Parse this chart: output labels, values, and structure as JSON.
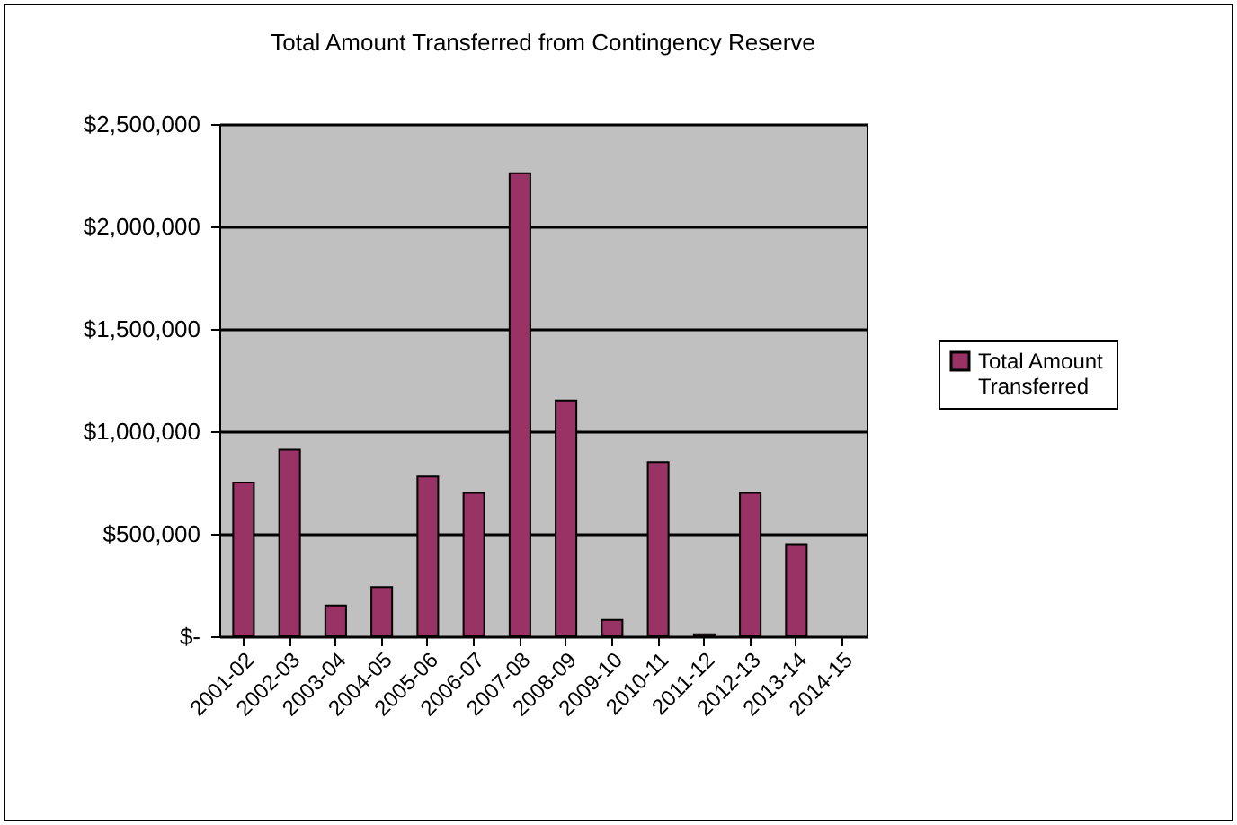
{
  "chart_data": {
    "type": "bar",
    "title": "Total Amount Transferred from Contingency Reserve",
    "categories": [
      "2001-02",
      "2002-03",
      "2003-04",
      "2004-05",
      "2005-06",
      "2006-07",
      "2007-08",
      "2008-09",
      "2009-10",
      "2010-11",
      "2011-12",
      "2012-13",
      "2013-14",
      "2014-15"
    ],
    "series": [
      {
        "name": "Total Amount Transferred",
        "color": "#993366",
        "values": [
          750000,
          910000,
          150000,
          240000,
          780000,
          700000,
          2260000,
          1150000,
          80000,
          850000,
          10000,
          700000,
          450000,
          null
        ]
      }
    ],
    "ylim": [
      0,
      2500000
    ],
    "yticks": [
      {
        "value": 0,
        "label": "$-"
      },
      {
        "value": 500000,
        "label": "$500,000"
      },
      {
        "value": 1000000,
        "label": "$1,000,000"
      },
      {
        "value": 1500000,
        "label": "$1,500,000"
      },
      {
        "value": 2000000,
        "label": "$2,000,000"
      },
      {
        "value": 2500000,
        "label": "$2,500,000"
      }
    ],
    "grid": "y",
    "legend": "right"
  }
}
